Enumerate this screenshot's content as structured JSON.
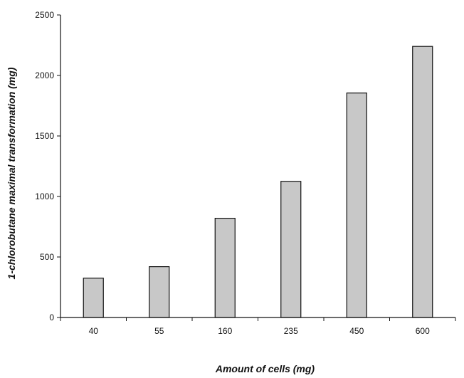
{
  "chart_data": {
    "type": "bar",
    "title": "",
    "xlabel": "Amount of cells (mg)",
    "ylabel": "1-chlorobutane maximal transformation (mg)",
    "categories": [
      "40",
      "55",
      "160",
      "235",
      "450",
      "600"
    ],
    "values": [
      325,
      420,
      820,
      1125,
      1855,
      2240
    ],
    "ylim": [
      0,
      2500
    ],
    "yticks": [
      0,
      500,
      1000,
      1500,
      2000,
      2500
    ],
    "grid": false,
    "legend": "none",
    "bar_color": "#c8c8c8",
    "bar_edge_color": "#111111"
  }
}
